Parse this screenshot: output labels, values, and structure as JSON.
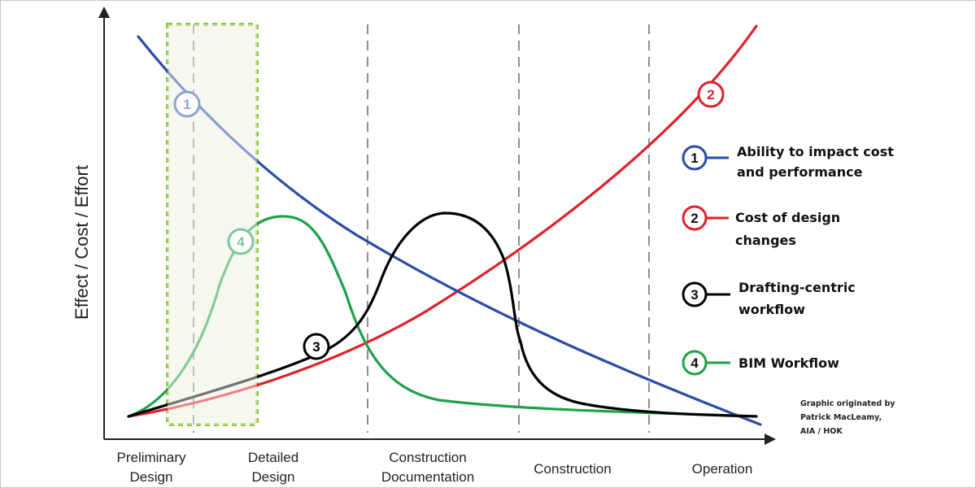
{
  "chart_data": {
    "type": "line",
    "ylabel": "Effect / Cost / Effort",
    "phases": [
      {
        "id": "preliminary",
        "lines": [
          "Preliminary",
          "Design"
        ]
      },
      {
        "id": "detailed",
        "lines": [
          "Detailed",
          "Design"
        ]
      },
      {
        "id": "construction-doc",
        "lines": [
          "Construction",
          "Documentation"
        ]
      },
      {
        "id": "construction",
        "lines": [
          "Construction"
        ]
      },
      {
        "id": "operation",
        "lines": [
          "Operation"
        ]
      }
    ],
    "highlight_phase": "preliminary",
    "series": [
      {
        "id": "1",
        "name_lines": [
          "Ability to impact cost",
          "and performance"
        ],
        "color": "#2c4ba8"
      },
      {
        "id": "2",
        "name_lines": [
          "Cost of design",
          "changes"
        ],
        "color": "#e0202a"
      },
      {
        "id": "3",
        "name_lines": [
          "Drafting-centric",
          "workflow"
        ],
        "color": "#000000"
      },
      {
        "id": "4",
        "name_lines": [
          "BIM Workflow"
        ],
        "color": "#1fa04a"
      }
    ],
    "credit_lines": [
      "Graphic originated by",
      "Patrick MacLeamy,",
      "AIA / HOK"
    ],
    "grid": false
  }
}
